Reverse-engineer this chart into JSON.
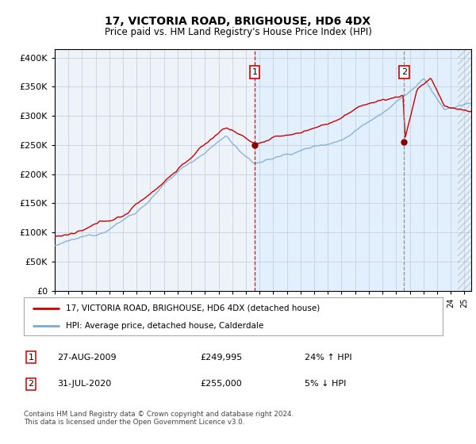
{
  "title": "17, VICTORIA ROAD, BRIGHOUSE, HD6 4DX",
  "subtitle": "Price paid vs. HM Land Registry's House Price Index (HPI)",
  "ytick_vals": [
    0,
    50000,
    100000,
    150000,
    200000,
    250000,
    300000,
    350000,
    400000
  ],
  "ylim": [
    0,
    415000
  ],
  "xlim_start": 1995.0,
  "xlim_end": 2025.5,
  "red_line_color": "#cc0000",
  "blue_line_color": "#7aaad0",
  "transaction1_year": 2009.65,
  "transaction1_price": 249995,
  "transaction2_year": 2020.58,
  "transaction2_price": 255000,
  "shade_start": 2009.65,
  "shade_color": "#ddeeff",
  "legend_line1": "17, VICTORIA ROAD, BRIGHOUSE, HD6 4DX (detached house)",
  "legend_line2": "HPI: Average price, detached house, Calderdale",
  "footer": "Contains HM Land Registry data © Crown copyright and database right 2024.\nThis data is licensed under the Open Government Licence v3.0.",
  "table_rows": [
    {
      "num": "1",
      "date": "27-AUG-2009",
      "price": "£249,995",
      "hpi": "24% ↑ HPI"
    },
    {
      "num": "2",
      "date": "31-JUL-2020",
      "price": "£255,000",
      "hpi": "5% ↓ HPI"
    }
  ],
  "plot_bg_color": "#eef3fa",
  "grid_color": "#c8d0e0"
}
